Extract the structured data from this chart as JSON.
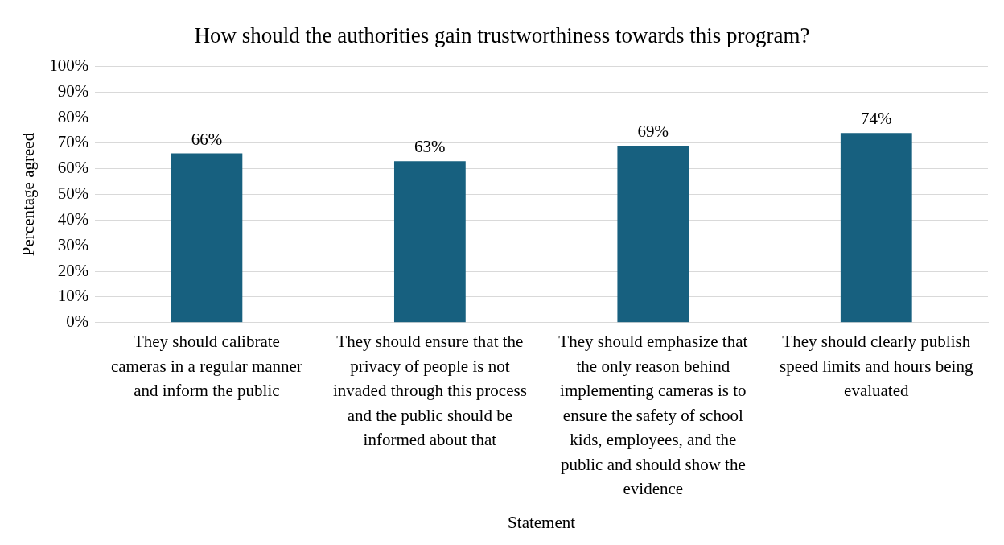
{
  "chart_data": {
    "type": "bar",
    "title": "How should the authorities gain trustworthiness towards this program?",
    "xlabel": "Statement",
    "ylabel": "Percentage agreed",
    "categories": [
      "They should calibrate cameras in a regular manner and inform the public",
      "They should ensure that the privacy of people is not invaded through this process and the public should be informed about that",
      "They should emphasize that the only reason behind implementing cameras is to ensure the safety of school kids, employees, and the public and should show the evidence",
      "They should clearly publish speed limits and hours being evaluated"
    ],
    "values": [
      66,
      63,
      69,
      74
    ],
    "value_labels": [
      "66%",
      "63%",
      "69%",
      "74%"
    ],
    "color": "#17607f",
    "grid": "y",
    "legend": false,
    "ylim": [
      0,
      100
    ],
    "yticks": [
      {
        "value": 0,
        "label": "0%"
      },
      {
        "value": 10,
        "label": "10%"
      },
      {
        "value": 20,
        "label": "20%"
      },
      {
        "value": 30,
        "label": "30%"
      },
      {
        "value": 40,
        "label": "40%"
      },
      {
        "value": 50,
        "label": "50%"
      },
      {
        "value": 60,
        "label": "60%"
      },
      {
        "value": 70,
        "label": "70%"
      },
      {
        "value": 80,
        "label": "80%"
      },
      {
        "value": 90,
        "label": "90%"
      },
      {
        "value": 100,
        "label": "100%"
      }
    ]
  }
}
